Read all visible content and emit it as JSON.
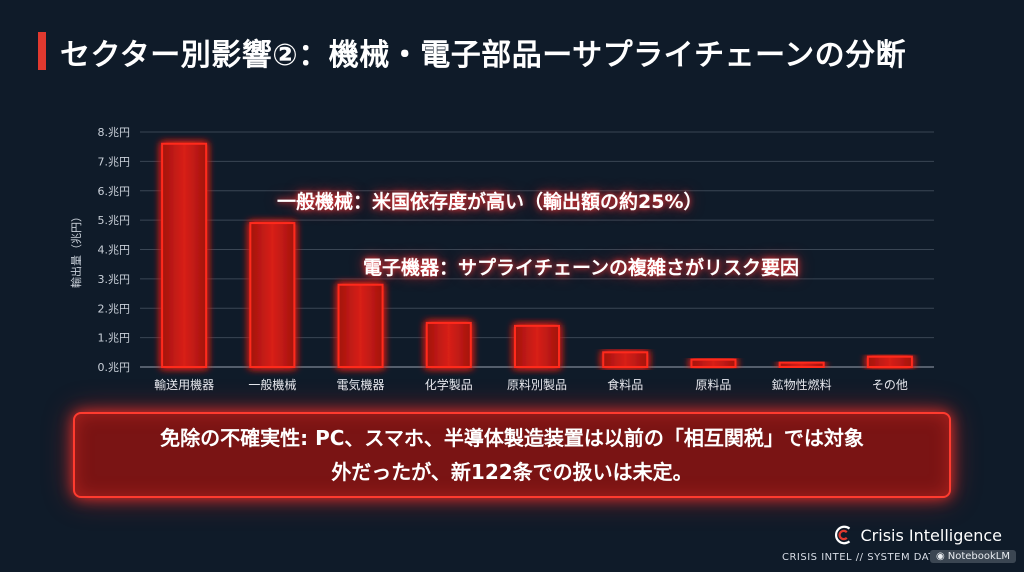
{
  "title": "セクター別影響②：機械・電子部品ーサプライチェーンの分断",
  "accent_color": "#e0392f",
  "chart_data": {
    "type": "bar",
    "ylabel": "輸出量（兆円）",
    "ylim": [
      0,
      8
    ],
    "y_ticks": [
      "0.兆円",
      "1.兆円",
      "2.兆円",
      "3.兆円",
      "4.兆円",
      "5.兆円",
      "6.兆円",
      "7.兆円",
      "8.兆円"
    ],
    "categories": [
      "輸送用機器",
      "一般機械",
      "電気機器",
      "化学製品",
      "原料別製品",
      "食料品",
      "原料品",
      "鉱物性燃料",
      "その他"
    ],
    "values": [
      7.6,
      4.9,
      2.8,
      1.5,
      1.4,
      0.5,
      0.25,
      0.15,
      0.35
    ],
    "grid": true,
    "bar_color": "#ff2a1f"
  },
  "annotations": [
    "一般機械：米国依存度が高い（輸出額の約25%）",
    "電子機器：サプライチェーンの複雑さがリスク要因"
  ],
  "callout": "免除の不確実性: PC、スマホ、半導体製造装置は以前の「相互関税」では対象外だったが、新122条での扱いは未定。",
  "brand": "Crisis Intelligence",
  "footer": "CRISIS INTEL // SYSTEM DATE",
  "badge": "NotebookLM"
}
